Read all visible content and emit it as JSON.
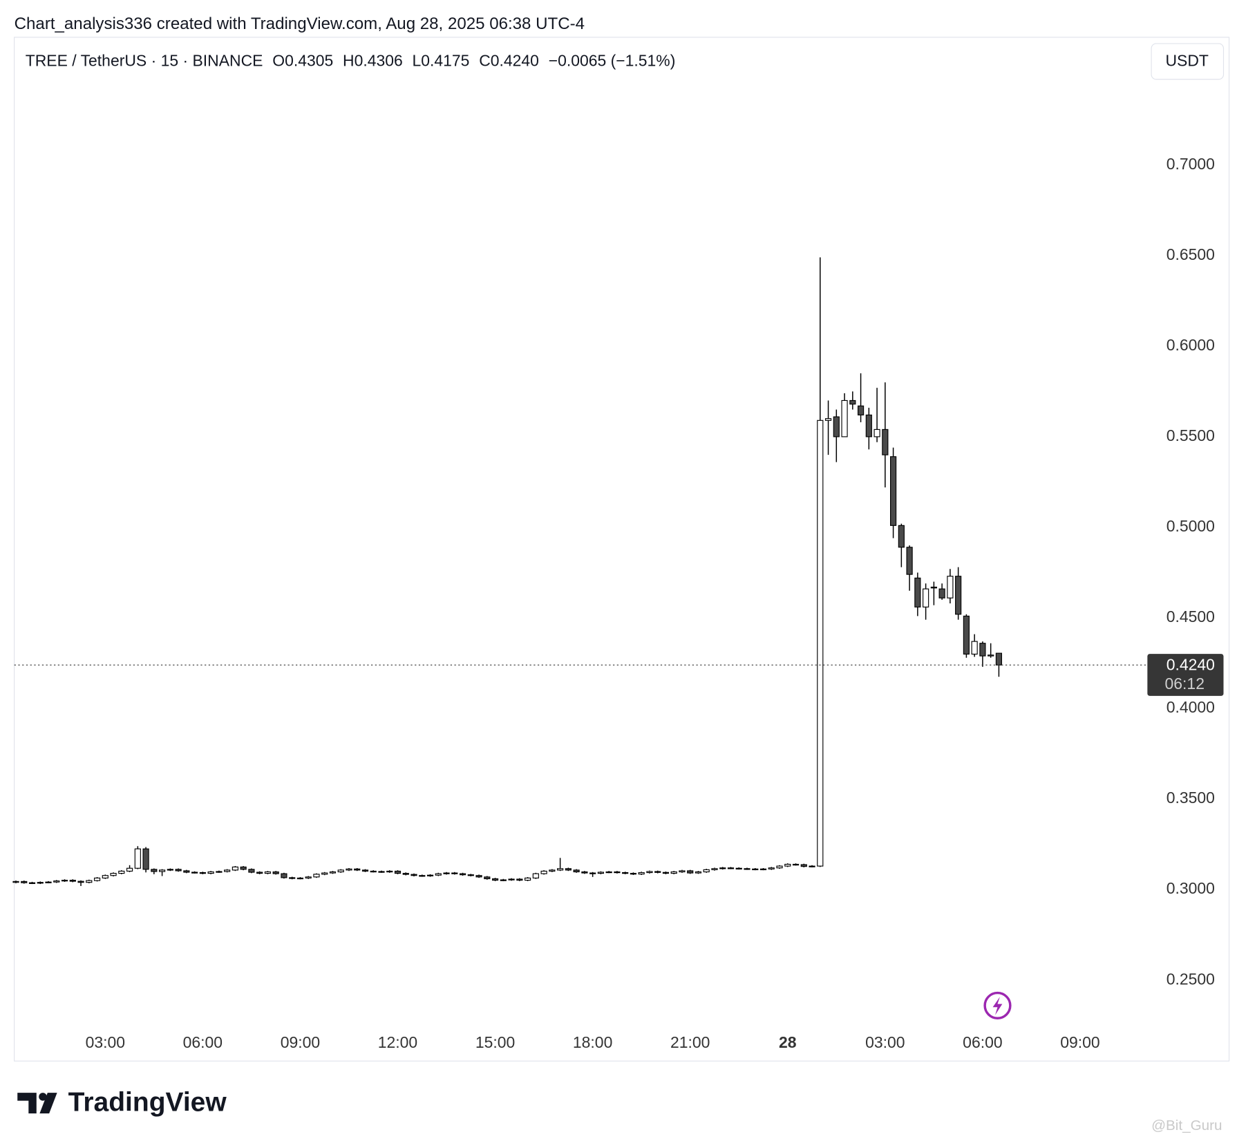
{
  "header": {
    "attribution": "Chart_analysis336 created with TradingView.com, Aug 28, 2025 06:38 UTC-4"
  },
  "legend": {
    "symbol": "TREE / TetherUS · 15 · BINANCE",
    "open": "O0.4305",
    "high": "H0.4306",
    "low": "L0.4175",
    "close": "C0.4240",
    "change": "−0.0065 (−1.51%)"
  },
  "toolbar": {
    "currency": "USDT"
  },
  "footer": {
    "logo": "TradingView",
    "watermark": "@Bit_Guru"
  },
  "chart_data": {
    "type": "candlestick",
    "x": [
      0.25,
      0.5,
      0.75,
      1,
      1.25,
      1.5,
      1.75,
      2,
      2.25,
      2.5,
      2.75,
      3,
      3.25,
      3.5,
      3.75,
      4,
      4.25,
      4.5,
      4.75,
      5,
      5.25,
      5.5,
      5.75,
      6,
      6.25,
      6.5,
      6.75,
      7,
      7.25,
      7.5,
      7.75,
      8,
      8.25,
      8.5,
      8.75,
      9,
      9.25,
      9.5,
      9.75,
      10,
      10.25,
      10.5,
      10.75,
      11,
      11.25,
      11.5,
      11.75,
      12,
      12.25,
      12.5,
      12.75,
      13,
      13.25,
      13.5,
      13.75,
      14,
      14.25,
      14.5,
      14.75,
      15,
      15.25,
      15.5,
      15.75,
      16,
      16.25,
      16.5,
      16.75,
      17,
      17.25,
      17.5,
      17.75,
      18,
      18.25,
      18.5,
      18.75,
      19,
      19.25,
      19.5,
      19.75,
      20,
      20.25,
      20.5,
      20.75,
      21,
      21.25,
      21.5,
      21.75,
      22,
      22.25,
      22.5,
      22.75,
      23,
      23.25,
      23.5,
      23.75,
      24,
      24.25,
      24.5,
      24.75,
      25,
      25.25,
      25.5,
      25.75,
      26,
      26.25,
      26.5,
      26.75,
      27,
      27.25,
      27.5,
      27.75,
      28,
      28.25,
      28.5,
      28.75,
      29,
      29.25,
      29.5,
      29.75,
      30,
      30.25,
      30.5
    ],
    "open": [
      0.304,
      0.3045,
      0.3038,
      0.3036,
      0.304,
      0.3042,
      0.3048,
      0.3052,
      0.3046,
      0.304,
      0.305,
      0.3064,
      0.3078,
      0.309,
      0.3102,
      0.3118,
      0.3225,
      0.3112,
      0.31,
      0.3108,
      0.3112,
      0.3104,
      0.3096,
      0.3094,
      0.309,
      0.3098,
      0.31,
      0.3108,
      0.3125,
      0.3112,
      0.3096,
      0.309,
      0.3098,
      0.3088,
      0.3066,
      0.3062,
      0.3064,
      0.307,
      0.3085,
      0.3092,
      0.3098,
      0.3108,
      0.3114,
      0.3108,
      0.3102,
      0.31,
      0.3098,
      0.3102,
      0.309,
      0.3084,
      0.3078,
      0.3076,
      0.308,
      0.3088,
      0.3092,
      0.3088,
      0.3082,
      0.3078,
      0.307,
      0.306,
      0.3052,
      0.3054,
      0.3058,
      0.3052,
      0.3064,
      0.3088,
      0.3102,
      0.3108,
      0.3116,
      0.3108,
      0.3098,
      0.3092,
      0.309,
      0.3096,
      0.3098,
      0.3094,
      0.309,
      0.3086,
      0.3094,
      0.31,
      0.3095,
      0.309,
      0.3098,
      0.3104,
      0.3092,
      0.3098,
      0.311,
      0.3116,
      0.312,
      0.3118,
      0.3116,
      0.3114,
      0.3112,
      0.3114,
      0.312,
      0.313,
      0.314,
      0.3138,
      0.3128,
      0.313,
      0.559,
      0.561,
      0.55,
      0.57,
      0.567,
      0.562,
      0.55,
      0.554,
      0.539,
      0.501,
      0.489,
      0.472,
      0.456,
      0.467,
      0.466,
      0.461,
      0.473,
      0.451,
      0.43,
      0.436,
      0.429,
      0.4305
    ],
    "high": [
      0.305,
      0.305,
      0.3043,
      0.3045,
      0.3047,
      0.3053,
      0.3057,
      0.3057,
      0.3051,
      0.3055,
      0.3069,
      0.3083,
      0.3095,
      0.3107,
      0.3135,
      0.324,
      0.3235,
      0.3117,
      0.3113,
      0.3117,
      0.3117,
      0.3109,
      0.3101,
      0.3099,
      0.3103,
      0.3105,
      0.3113,
      0.313,
      0.313,
      0.3117,
      0.3101,
      0.3103,
      0.3103,
      0.3093,
      0.3071,
      0.3069,
      0.3075,
      0.309,
      0.3097,
      0.3103,
      0.3113,
      0.3119,
      0.3119,
      0.3113,
      0.3107,
      0.3105,
      0.3107,
      0.3107,
      0.3095,
      0.3089,
      0.3083,
      0.3085,
      0.3093,
      0.3097,
      0.3097,
      0.3093,
      0.3087,
      0.3083,
      0.3075,
      0.3065,
      0.3059,
      0.3063,
      0.3063,
      0.3069,
      0.3093,
      0.3107,
      0.3113,
      0.3175,
      0.3121,
      0.3113,
      0.3103,
      0.3097,
      0.3101,
      0.3103,
      0.3103,
      0.3099,
      0.3095,
      0.3099,
      0.3105,
      0.3105,
      0.31,
      0.3103,
      0.3109,
      0.3109,
      0.3103,
      0.3115,
      0.3121,
      0.3125,
      0.3125,
      0.3123,
      0.3121,
      0.3119,
      0.3119,
      0.3125,
      0.3135,
      0.3145,
      0.3145,
      0.3143,
      0.3135,
      0.649,
      0.57,
      0.565,
      0.574,
      0.575,
      0.585,
      0.566,
      0.577,
      0.58,
      0.544,
      0.502,
      0.49,
      0.475,
      0.469,
      0.47,
      0.469,
      0.477,
      0.478,
      0.452,
      0.441,
      0.437,
      0.436,
      0.4306
    ],
    "low": [
      0.3035,
      0.3033,
      0.3031,
      0.3031,
      0.3035,
      0.3037,
      0.3043,
      0.3041,
      0.302,
      0.3035,
      0.3045,
      0.3059,
      0.3073,
      0.3085,
      0.3097,
      0.3113,
      0.3095,
      0.3085,
      0.3075,
      0.3103,
      0.3099,
      0.3091,
      0.3089,
      0.3085,
      0.3085,
      0.3093,
      0.3095,
      0.3103,
      0.3107,
      0.3091,
      0.3085,
      0.3085,
      0.3083,
      0.3061,
      0.3057,
      0.3057,
      0.3059,
      0.3065,
      0.308,
      0.3087,
      0.3093,
      0.3103,
      0.3103,
      0.3097,
      0.3095,
      0.3093,
      0.3093,
      0.3085,
      0.3079,
      0.3073,
      0.3071,
      0.3071,
      0.3075,
      0.3083,
      0.3083,
      0.3077,
      0.3073,
      0.3065,
      0.3055,
      0.3047,
      0.3047,
      0.3049,
      0.3047,
      0.3047,
      0.3059,
      0.3083,
      0.3097,
      0.3103,
      0.3103,
      0.3093,
      0.3087,
      0.307,
      0.3085,
      0.3091,
      0.3089,
      0.3085,
      0.3081,
      0.3081,
      0.3089,
      0.309,
      0.3085,
      0.3085,
      0.3093,
      0.3087,
      0.3087,
      0.3093,
      0.3105,
      0.3111,
      0.3113,
      0.3111,
      0.3109,
      0.3107,
      0.3107,
      0.3109,
      0.3115,
      0.3125,
      0.3133,
      0.3123,
      0.3123,
      0.3125,
      0.54,
      0.536,
      0.55,
      0.565,
      0.558,
      0.543,
      0.547,
      0.522,
      0.494,
      0.478,
      0.465,
      0.451,
      0.449,
      0.457,
      0.46,
      0.458,
      0.449,
      0.428,
      0.4285,
      0.423,
      0.428,
      0.4175
    ],
    "close": [
      0.3045,
      0.3038,
      0.3036,
      0.304,
      0.3042,
      0.3048,
      0.3052,
      0.3046,
      0.304,
      0.305,
      0.3064,
      0.3078,
      0.309,
      0.3102,
      0.3118,
      0.3225,
      0.3112,
      0.31,
      0.3108,
      0.3112,
      0.3104,
      0.3096,
      0.3094,
      0.309,
      0.3098,
      0.31,
      0.3108,
      0.3125,
      0.3112,
      0.3096,
      0.309,
      0.3098,
      0.3088,
      0.3066,
      0.3062,
      0.3064,
      0.307,
      0.3085,
      0.3092,
      0.3098,
      0.3108,
      0.3114,
      0.3108,
      0.3102,
      0.31,
      0.3098,
      0.3102,
      0.309,
      0.3084,
      0.3078,
      0.3076,
      0.308,
      0.3088,
      0.3092,
      0.3088,
      0.3082,
      0.3078,
      0.307,
      0.306,
      0.3052,
      0.3054,
      0.3058,
      0.3052,
      0.3064,
      0.3088,
      0.3102,
      0.3108,
      0.3116,
      0.3108,
      0.3098,
      0.3092,
      0.309,
      0.3096,
      0.3098,
      0.3094,
      0.309,
      0.3086,
      0.3094,
      0.31,
      0.3095,
      0.309,
      0.3098,
      0.3104,
      0.3092,
      0.3098,
      0.311,
      0.3116,
      0.312,
      0.3118,
      0.3116,
      0.3114,
      0.3112,
      0.3114,
      0.312,
      0.313,
      0.314,
      0.3138,
      0.3128,
      0.313,
      0.559,
      0.56,
      0.55,
      0.57,
      0.568,
      0.562,
      0.55,
      0.554,
      0.54,
      0.501,
      0.489,
      0.474,
      0.456,
      0.466,
      0.4665,
      0.461,
      0.473,
      0.452,
      0.43,
      0.437,
      0.429,
      0.4295,
      0.424
    ],
    "up_color": "#ffffff",
    "down_color": "#4a4a4a",
    "outline_color": "#000000",
    "xlim": [
      0.2,
      34.9
    ],
    "xticks": [
      {
        "value": 3,
        "label": "03:00"
      },
      {
        "value": 6,
        "label": "06:00"
      },
      {
        "value": 9,
        "label": "09:00"
      },
      {
        "value": 12,
        "label": "12:00"
      },
      {
        "value": 15,
        "label": "15:00"
      },
      {
        "value": 18,
        "label": "18:00"
      },
      {
        "value": 21,
        "label": "21:00"
      },
      {
        "value": 24,
        "label": "28"
      },
      {
        "value": 27,
        "label": "03:00"
      },
      {
        "value": 30,
        "label": "06:00"
      },
      {
        "value": 33,
        "label": "09:00"
      }
    ],
    "ylim": [
      0.2242,
      0.7705
    ],
    "yticks": [
      {
        "value": 0.25,
        "label": "0.2500"
      },
      {
        "value": 0.3,
        "label": "0.3000"
      },
      {
        "value": 0.35,
        "label": "0.3500"
      },
      {
        "value": 0.4,
        "label": "0.4000"
      },
      {
        "value": 0.45,
        "label": "0.4500"
      },
      {
        "value": 0.5,
        "label": "0.5000"
      },
      {
        "value": 0.55,
        "label": "0.5500"
      },
      {
        "value": 0.6,
        "label": "0.6000"
      },
      {
        "value": 0.65,
        "label": "0.6500"
      },
      {
        "value": 0.7,
        "label": "0.7000"
      }
    ],
    "last_price": {
      "value": 0.424,
      "label": "0.4240"
    },
    "countdown": "06:12",
    "grid": false
  }
}
